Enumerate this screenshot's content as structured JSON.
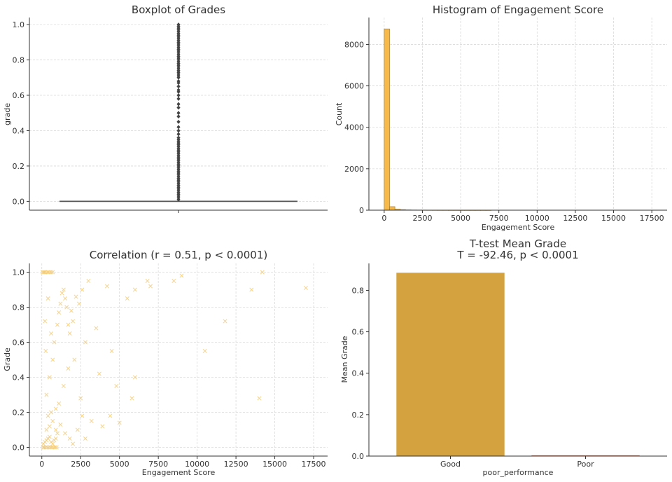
{
  "colors": {
    "accent": "#f6b94a",
    "bar_good": "#d4a23f",
    "bar_poor": "#b3553a",
    "scatter": "#f2c66b",
    "box_line": "#555555",
    "grid": "#d9d9d9"
  },
  "chart_data": [
    {
      "type": "box",
      "title": "Boxplot of Grades",
      "xlabel": "",
      "ylabel": "grade",
      "ylim": [
        -0.05,
        1.04
      ],
      "yticks": [
        "0.0",
        "0.2",
        "0.4",
        "0.6",
        "0.8",
        "1.0"
      ],
      "median": 0.0,
      "q1": 0.0,
      "q3": 0.0,
      "whisker_low": 0.0,
      "whisker_high": 0.0,
      "outliers": [
        0.01,
        0.02,
        0.03,
        0.04,
        0.05,
        0.06,
        0.07,
        0.08,
        0.09,
        0.1,
        0.11,
        0.12,
        0.13,
        0.14,
        0.15,
        0.16,
        0.17,
        0.18,
        0.19,
        0.2,
        0.21,
        0.22,
        0.23,
        0.24,
        0.25,
        0.26,
        0.27,
        0.28,
        0.29,
        0.3,
        0.31,
        0.32,
        0.33,
        0.34,
        0.35,
        0.36,
        0.38,
        0.4,
        0.42,
        0.45,
        0.48,
        0.5,
        0.53,
        0.55,
        0.58,
        0.6,
        0.62,
        0.63,
        0.65,
        0.67,
        0.68,
        0.7,
        0.71,
        0.72,
        0.73,
        0.74,
        0.75,
        0.76,
        0.77,
        0.78,
        0.79,
        0.8,
        0.81,
        0.82,
        0.83,
        0.84,
        0.85,
        0.86,
        0.87,
        0.88,
        0.89,
        0.9,
        0.91,
        0.92,
        0.93,
        0.94,
        0.95,
        0.96,
        0.97,
        0.98,
        0.99,
        1.0
      ]
    },
    {
      "type": "bar",
      "title": "Histogram of Engagement Score",
      "xlabel": "Engagement Score",
      "ylabel": "Count",
      "xlim": [
        -1000,
        18500
      ],
      "ylim": [
        0,
        9300
      ],
      "xticks": [
        "0",
        "2500",
        "5000",
        "7500",
        "10000",
        "12500",
        "15000",
        "17500"
      ],
      "yticks": [
        "0",
        "2000",
        "4000",
        "6000",
        "8000"
      ],
      "bin_width": 350,
      "bin_start": 0,
      "values": [
        8750,
        170,
        50,
        25,
        15,
        10,
        8,
        6,
        5,
        4,
        3,
        3,
        2,
        2,
        2,
        1,
        1,
        1,
        1,
        1
      ]
    },
    {
      "type": "scatter",
      "title": "Correlation (r = 0.51, p < 0.0001)",
      "xlabel": "Engagement Score",
      "ylabel": "Grade",
      "xlim": [
        -800,
        18400
      ],
      "ylim": [
        -0.05,
        1.05
      ],
      "xticks": [
        "0",
        "2500",
        "5000",
        "7500",
        "10000",
        "12500",
        "15000",
        "17500"
      ],
      "yticks": [
        "0.0",
        "0.2",
        "0.4",
        "0.6",
        "0.8",
        "1.0"
      ],
      "points": [
        [
          50,
          1.0
        ],
        [
          120,
          1.0
        ],
        [
          200,
          1.0
        ],
        [
          300,
          1.0
        ],
        [
          400,
          1.0
        ],
        [
          500,
          1.0
        ],
        [
          600,
          1.0
        ],
        [
          700,
          1.0
        ],
        [
          80,
          0.0
        ],
        [
          150,
          0.0
        ],
        [
          250,
          0.0
        ],
        [
          350,
          0.0
        ],
        [
          450,
          0.0
        ],
        [
          550,
          0.0
        ],
        [
          650,
          0.0
        ],
        [
          750,
          0.0
        ],
        [
          850,
          0.0
        ],
        [
          950,
          0.0
        ],
        [
          100,
          0.02
        ],
        [
          200,
          0.03
        ],
        [
          300,
          0.04
        ],
        [
          400,
          0.05
        ],
        [
          500,
          0.06
        ],
        [
          600,
          0.03
        ],
        [
          700,
          0.02
        ],
        [
          800,
          0.04
        ],
        [
          900,
          0.05
        ],
        [
          1000,
          0.08
        ],
        [
          300,
          0.1
        ],
        [
          500,
          0.12
        ],
        [
          700,
          0.15
        ],
        [
          400,
          0.18
        ],
        [
          600,
          0.2
        ],
        [
          900,
          0.1
        ],
        [
          1200,
          0.13
        ],
        [
          1500,
          0.08
        ],
        [
          1800,
          0.05
        ],
        [
          2000,
          0.02
        ],
        [
          2300,
          0.1
        ],
        [
          2600,
          0.18
        ],
        [
          2800,
          0.05
        ],
        [
          3200,
          0.15
        ],
        [
          3900,
          0.12
        ],
        [
          4400,
          0.18
        ],
        [
          5000,
          0.14
        ],
        [
          5800,
          0.28
        ],
        [
          6000,
          0.4
        ],
        [
          4800,
          0.35
        ],
        [
          200,
          0.72
        ],
        [
          400,
          0.85
        ],
        [
          800,
          0.6
        ],
        [
          1000,
          0.7
        ],
        [
          1100,
          0.77
        ],
        [
          1200,
          0.82
        ],
        [
          1300,
          0.88
        ],
        [
          1400,
          0.9
        ],
        [
          1500,
          0.85
        ],
        [
          1600,
          0.8
        ],
        [
          1700,
          0.7
        ],
        [
          1800,
          0.65
        ],
        [
          1900,
          0.78
        ],
        [
          2000,
          0.72
        ],
        [
          2200,
          0.86
        ],
        [
          2400,
          0.82
        ],
        [
          2600,
          0.9
        ],
        [
          2800,
          0.6
        ],
        [
          3000,
          0.95
        ],
        [
          3500,
          0.68
        ],
        [
          4200,
          0.92
        ],
        [
          4500,
          0.55
        ],
        [
          5500,
          0.85
        ],
        [
          6000,
          0.9
        ],
        [
          6800,
          0.95
        ],
        [
          7000,
          0.92
        ],
        [
          8500,
          0.95
        ],
        [
          9000,
          0.98
        ],
        [
          10500,
          0.55
        ],
        [
          11800,
          0.72
        ],
        [
          14000,
          0.28
        ],
        [
          14200,
          1.0
        ],
        [
          13500,
          0.9
        ],
        [
          17000,
          0.91
        ],
        [
          300,
          0.3
        ],
        [
          500,
          0.4
        ],
        [
          700,
          0.5
        ],
        [
          250,
          0.55
        ],
        [
          1400,
          0.35
        ],
        [
          1700,
          0.45
        ],
        [
          2100,
          0.5
        ],
        [
          2500,
          0.28
        ],
        [
          3700,
          0.42
        ],
        [
          600,
          0.65
        ],
        [
          900,
          0.22
        ],
        [
          1100,
          0.25
        ]
      ]
    },
    {
      "type": "bar",
      "title": "T-test Mean Grade",
      "subtitle": "T = -92.46, p < 0.0001",
      "xlabel": "poor_performance",
      "ylabel": "Mean Grade",
      "categories": [
        "Good",
        "Poor"
      ],
      "values": [
        0.885,
        0.003
      ],
      "ylim": [
        0,
        0.93
      ],
      "yticks": [
        "0.0",
        "0.2",
        "0.4",
        "0.6",
        "0.8"
      ]
    }
  ]
}
